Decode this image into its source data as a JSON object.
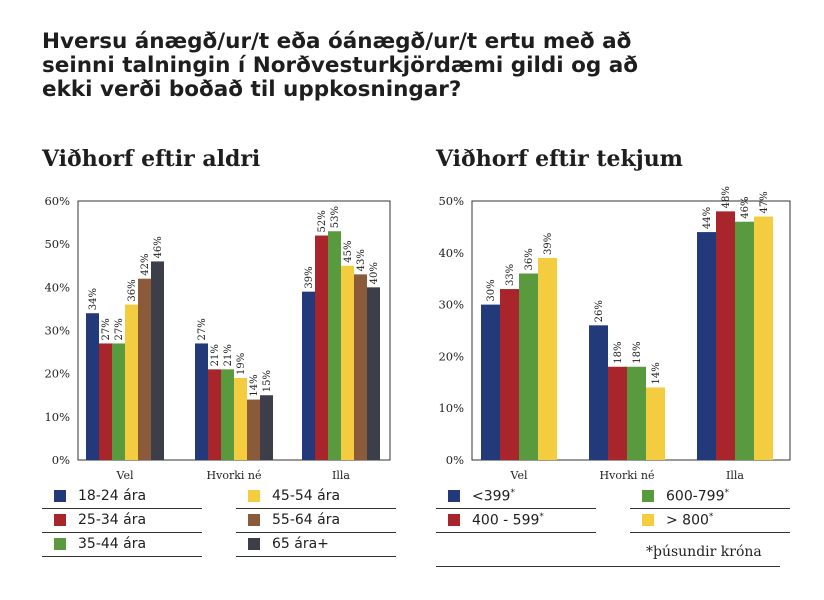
{
  "title": "Hversu ánægð/ur/t eða óánægð/ur/t ertu með að seinni talningin í Norðvesturkjördæmi gildi og að ekki verði boðað til uppkosningar?",
  "footnote": "*þúsundir króna",
  "chart_data": [
    {
      "type": "bar",
      "title": "Viðhorf eftir aldri",
      "categories": [
        "Vel",
        "Hvorki né",
        "Illa"
      ],
      "yticks": [
        "0%",
        "10%",
        "20%",
        "30%",
        "40%",
        "50%",
        "60%"
      ],
      "ylim": [
        0,
        60
      ],
      "grid": false,
      "legend_position": "bottom",
      "series": [
        {
          "name": "18-24 ára",
          "color": "#223a7a",
          "values": [
            34,
            27,
            39
          ],
          "labels": [
            "34%",
            "27%",
            "39%"
          ]
        },
        {
          "name": "25-34 ára",
          "color": "#a8262b",
          "values": [
            27,
            21,
            52
          ],
          "labels": [
            "27%",
            "21%",
            "52%"
          ]
        },
        {
          "name": "35-44 ára",
          "color": "#5a9a3f",
          "values": [
            27,
            21,
            53
          ],
          "labels": [
            "27%",
            "21%",
            "53%"
          ]
        },
        {
          "name": "45-54 ára",
          "color": "#f4cc40",
          "values": [
            36,
            19,
            45
          ],
          "labels": [
            "36%",
            "19%",
            "45%"
          ]
        },
        {
          "name": "55-64 ára",
          "color": "#8a5a3a",
          "values": [
            42,
            14,
            43
          ],
          "labels": [
            "42%",
            "14%",
            "43%"
          ]
        },
        {
          "name": "65 ára+",
          "color": "#3c3e4a",
          "values": [
            46,
            15,
            40
          ],
          "labels": [
            "46%",
            "15%",
            "40%"
          ]
        }
      ]
    },
    {
      "type": "bar",
      "title": "Viðhorf eftir tekjum",
      "categories": [
        "Vel",
        "Hvorki né",
        "Illa"
      ],
      "yticks": [
        "0%",
        "10%",
        "20%",
        "30%",
        "40%",
        "50%"
      ],
      "ylim": [
        0,
        50
      ],
      "grid": false,
      "legend_position": "bottom",
      "series": [
        {
          "name": "<399",
          "name_sup": "*",
          "color": "#223a7a",
          "values": [
            30,
            26,
            44
          ],
          "labels": [
            "30%",
            "26%",
            "44%"
          ]
        },
        {
          "name": "400 - 599",
          "name_sup": "*",
          "color": "#a8262b",
          "values": [
            33,
            18,
            48
          ],
          "labels": [
            "33%",
            "18%",
            "48%"
          ]
        },
        {
          "name": "600-799",
          "name_sup": "*",
          "color": "#5a9a3f",
          "values": [
            36,
            18,
            46
          ],
          "labels": [
            "36%",
            "18%",
            "46%"
          ]
        },
        {
          "name": "> 800",
          "name_sup": "*",
          "color": "#f4cc40",
          "values": [
            39,
            14,
            47
          ],
          "labels": [
            "39%",
            "14%",
            "47%"
          ]
        }
      ]
    }
  ]
}
